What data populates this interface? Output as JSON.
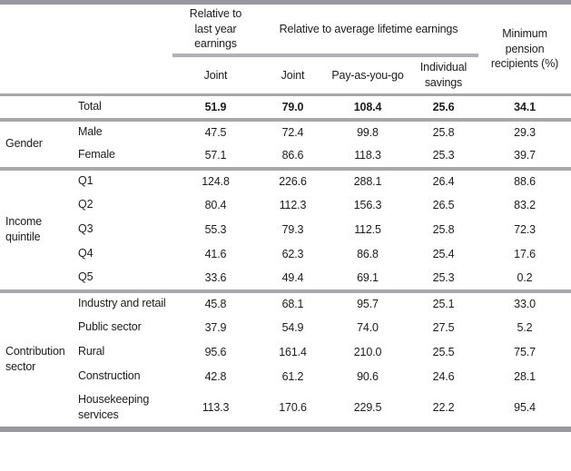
{
  "header": {
    "last_year_group": "Relative to\nlast year\nearnings",
    "lifetime_group": "Relative to average lifetime earnings",
    "min_pension": "Minimum\npension\nrecipients (%)",
    "columns": [
      "Joint",
      "Joint",
      "Pay-as-you-go",
      "Individual\nsavings"
    ]
  },
  "total": {
    "label": "Total",
    "values": [
      "51.9",
      "79.0",
      "108.4",
      "25.6",
      "34.1"
    ]
  },
  "sections": [
    {
      "group": "Gender",
      "rows": [
        {
          "label": "Male",
          "values": [
            "47.5",
            "72.4",
            "99.8",
            "25.8",
            "29.3"
          ]
        },
        {
          "label": "Female",
          "values": [
            "57.1",
            "86.6",
            "118.3",
            "25.3",
            "39.7"
          ]
        }
      ]
    },
    {
      "group": "Income quintile",
      "rows": [
        {
          "label": "Q1",
          "values": [
            "124.8",
            "226.6",
            "288.1",
            "26.4",
            "88.6"
          ]
        },
        {
          "label": "Q2",
          "values": [
            "80.4",
            "112.3",
            "156.3",
            "26.5",
            "83.2"
          ]
        },
        {
          "label": "Q3",
          "values": [
            "55.3",
            "79.3",
            "112.5",
            "25.8",
            "72.3"
          ]
        },
        {
          "label": "Q4",
          "values": [
            "41.6",
            "62.3",
            "86.8",
            "25.4",
            "17.6"
          ]
        },
        {
          "label": "Q5",
          "values": [
            "33.6",
            "49.4",
            "69.1",
            "25.3",
            "0.2"
          ]
        }
      ]
    },
    {
      "group": "Contribution sector",
      "rows": [
        {
          "label": "Industry and retail",
          "values": [
            "45.8",
            "68.1",
            "95.7",
            "25.1",
            "33.0"
          ]
        },
        {
          "label": "Public sector",
          "values": [
            "37.9",
            "54.9",
            "74.0",
            "27.5",
            "5.2"
          ]
        },
        {
          "label": "Rural",
          "values": [
            "95.6",
            "161.4",
            "210.0",
            "25.5",
            "75.7"
          ]
        },
        {
          "label": "Construction",
          "values": [
            "42.8",
            "61.2",
            "90.6",
            "24.6",
            "28.1"
          ]
        },
        {
          "label": "Housekeeping services",
          "values": [
            "113.3",
            "170.6",
            "229.5",
            "22.2",
            "95.4"
          ]
        }
      ]
    }
  ],
  "colors": {
    "border_outer": "#98979f",
    "border_inner": "#a7a7ad",
    "header_underline": "#b1b0b6",
    "text": "#1c1c1c",
    "background": "#ffffff"
  }
}
